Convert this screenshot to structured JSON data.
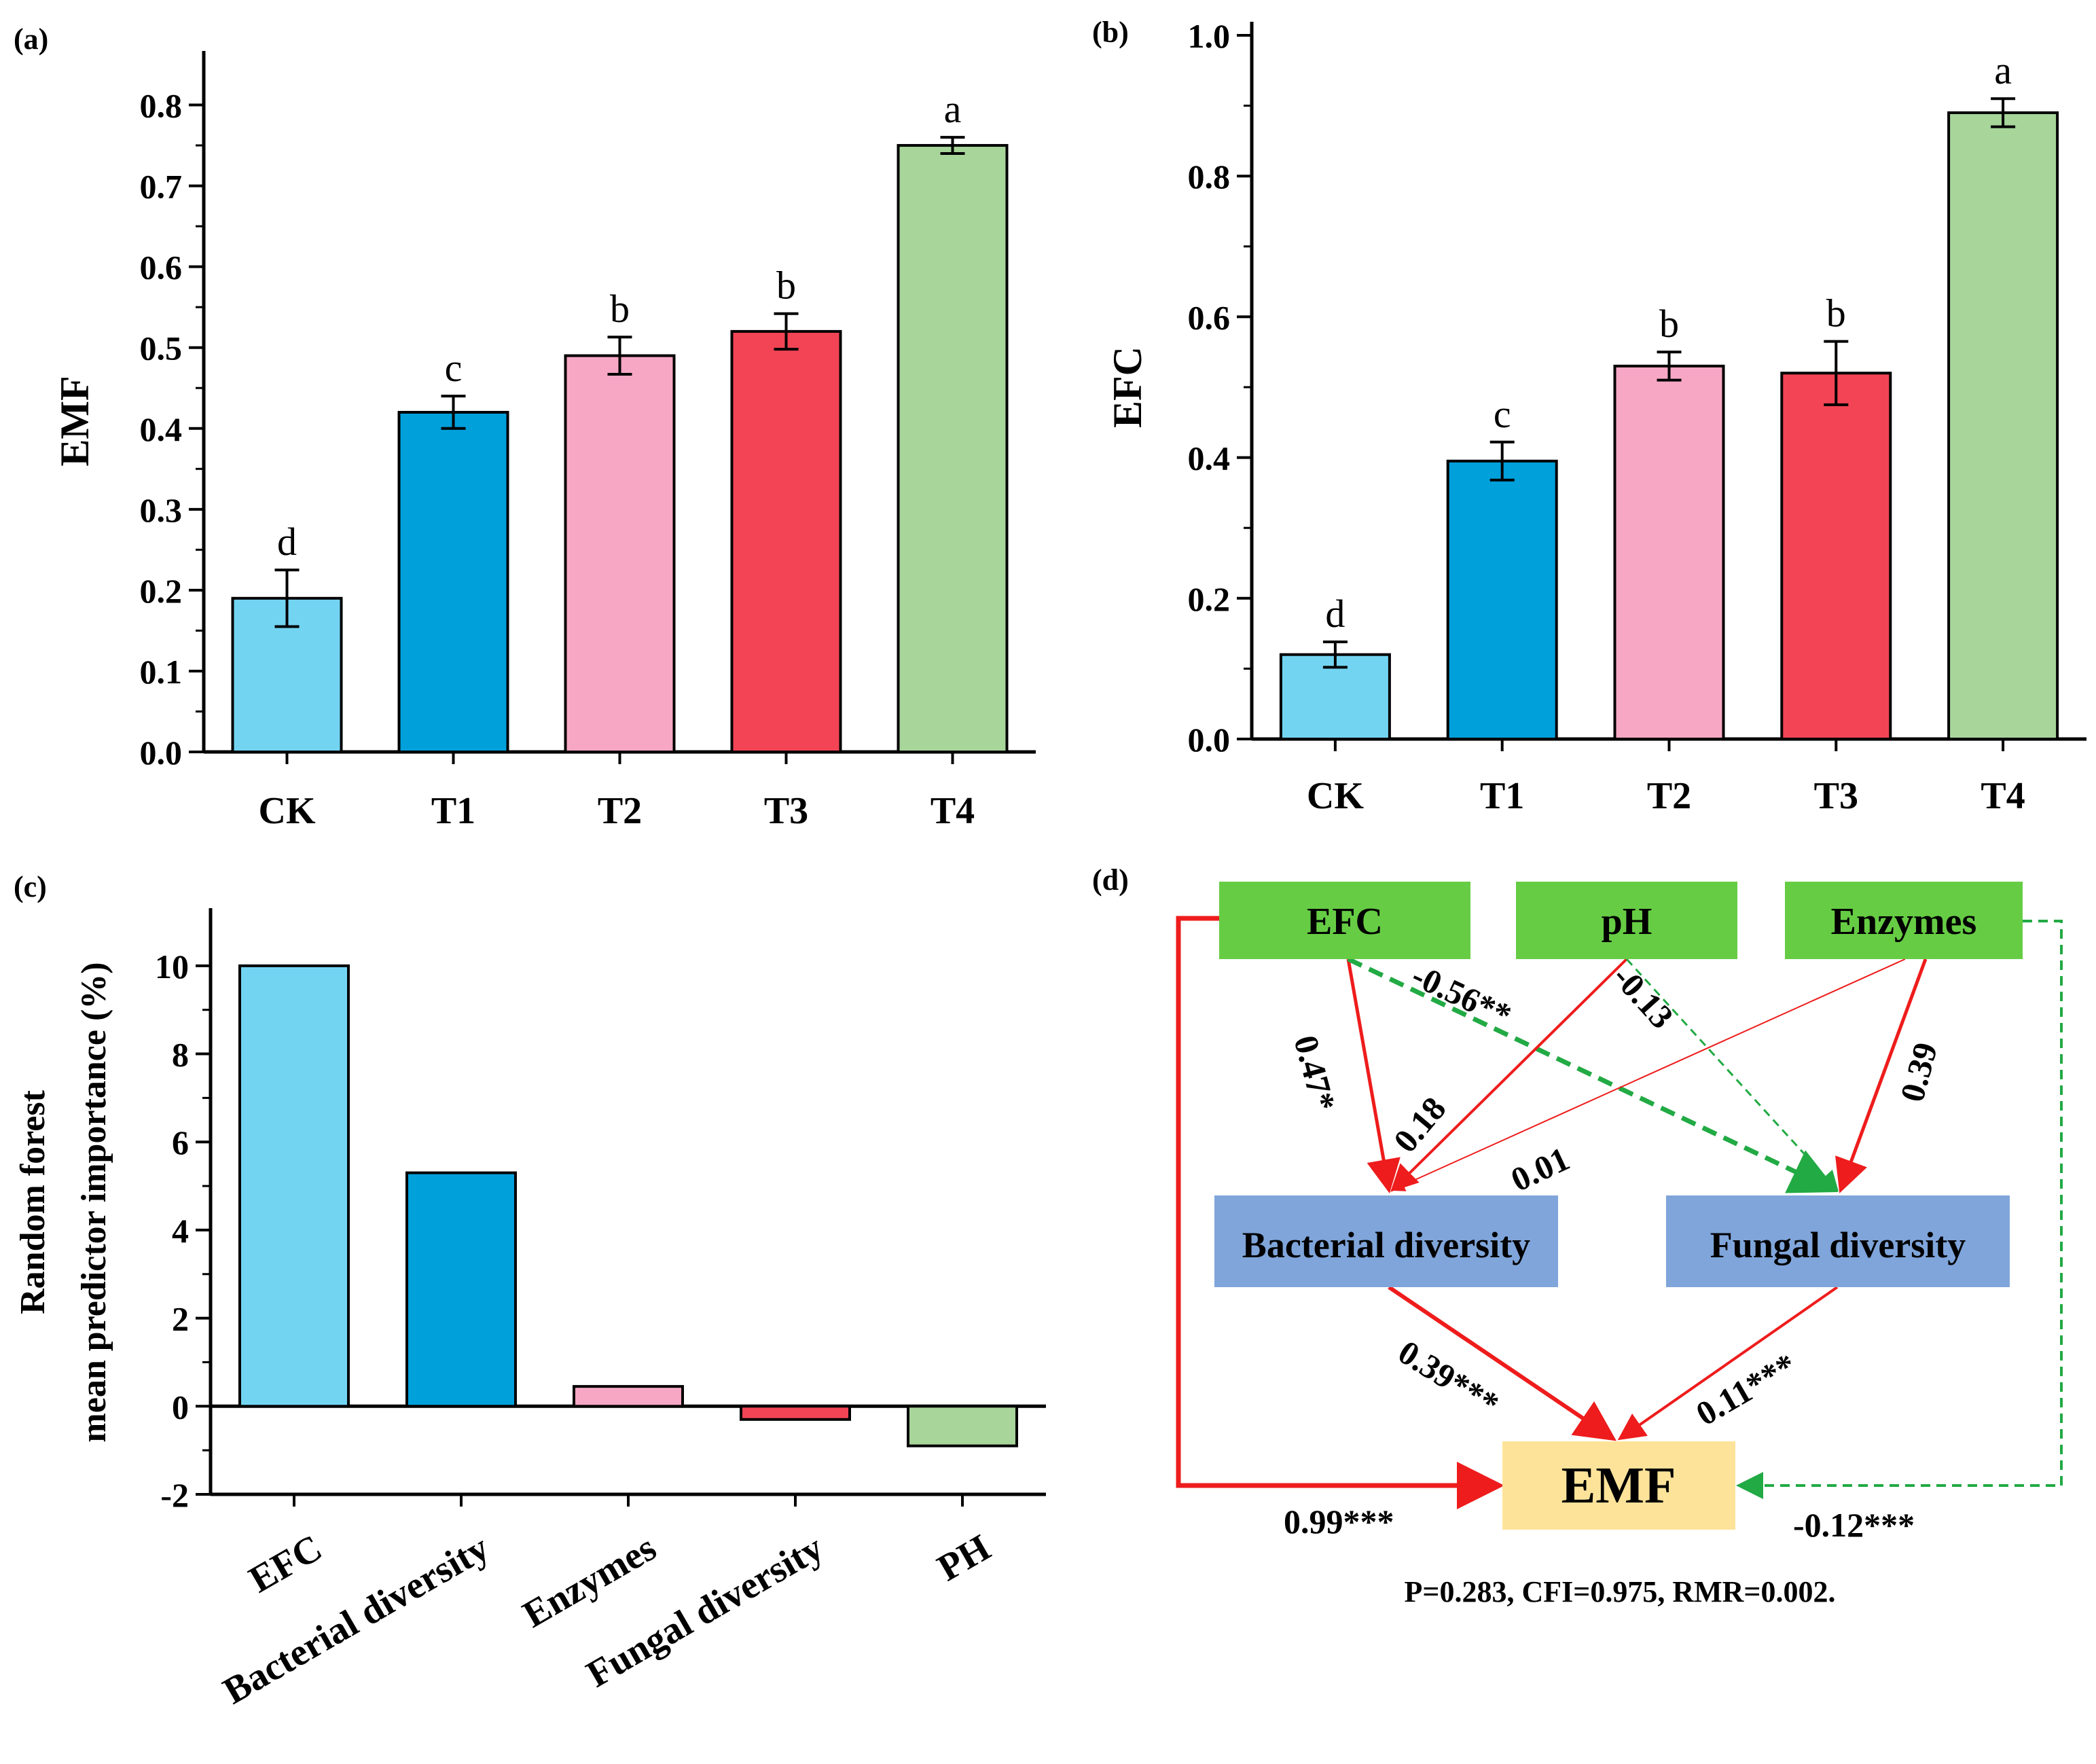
{
  "colors": {
    "CK": "#73d4f2",
    "T1": "#00a0db",
    "T2": "#f7a7c4",
    "T3": "#f24455",
    "T4": "#a7d59a",
    "node_green": "#66cc44",
    "node_blue": "#7fa5da",
    "node_yellow": "#fde39a",
    "pos_path": "#ee1c1c",
    "neg_path": "#22aa44"
  },
  "chart_data": [
    {
      "panel_label": "(a)",
      "type": "bar",
      "categories": [
        "CK",
        "T1",
        "T2",
        "T3",
        "T4"
      ],
      "values": [
        0.19,
        0.42,
        0.49,
        0.52,
        0.75
      ],
      "errors": [
        0.035,
        0.02,
        0.023,
        0.022,
        0.01
      ],
      "letters": [
        "d",
        "c",
        "b",
        "b",
        "a"
      ],
      "ylabel": "EMF",
      "ylim": [
        0,
        0.85
      ],
      "yticks": [
        "0.0",
        "0.1",
        "0.2",
        "0.3",
        "0.4",
        "0.5",
        "0.6",
        "0.7",
        "0.8"
      ]
    },
    {
      "panel_label": "(b)",
      "type": "bar",
      "categories": [
        "CK",
        "T1",
        "T2",
        "T3",
        "T4"
      ],
      "values": [
        0.12,
        0.395,
        0.53,
        0.52,
        0.89
      ],
      "errors": [
        0.018,
        0.027,
        0.02,
        0.045,
        0.02
      ],
      "letters": [
        "d",
        "c",
        "b",
        "b",
        "a"
      ],
      "ylabel": "EFC",
      "ylim": [
        0,
        1.0
      ],
      "yticks": [
        "0.0",
        "0.2",
        "0.4",
        "0.6",
        "0.8",
        "1.0"
      ]
    },
    {
      "panel_label": "(c)",
      "type": "bar",
      "categories": [
        "EFC",
        "Bacterial diversity",
        "Enzymes",
        "Fungal diversity",
        "PH"
      ],
      "values": [
        10.0,
        5.3,
        0.45,
        -0.3,
        -0.9
      ],
      "ylabel_line1": "Random forest",
      "ylabel_line2": "mean predictor importance (%)",
      "ylim": [
        -2,
        11
      ],
      "yticks": [
        "-2",
        "0",
        "2",
        "4",
        "6",
        "8",
        "10"
      ]
    }
  ],
  "sem": {
    "panel_label": "(d)",
    "nodes": {
      "efc": "EFC",
      "ph": "pH",
      "enzymes": "Enzymes",
      "bacterial": "Bacterial diversity",
      "fungal": "Fungal diversity",
      "emf": "EMF"
    },
    "paths": {
      "efc_bact": "0.47*",
      "efc_fung": "-0.56**",
      "ph_bact": "0.18",
      "ph_fung": "-0.13",
      "enz_bact": "0.01",
      "enz_fung": "0.39",
      "bact_emf": "0.39***",
      "fung_emf": "0.11***",
      "efc_emf": "0.99***",
      "enz_emf": "-0.12***"
    },
    "fit": "P=0.283, CFI=0.975, RMR=0.002."
  }
}
